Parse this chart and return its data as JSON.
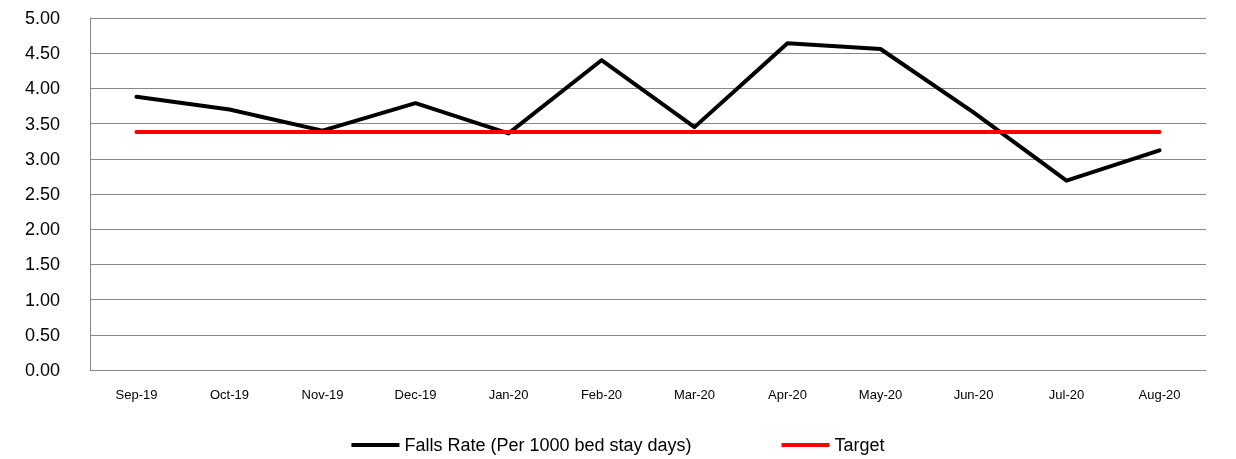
{
  "chart_data": {
    "type": "line",
    "categories": [
      "Sep-19",
      "Oct-19",
      "Nov-19",
      "Dec-19",
      "Jan-20",
      "Feb-20",
      "Mar-20",
      "Apr-20",
      "May-20",
      "Jun-20",
      "Jul-20",
      "Aug-20"
    ],
    "series": [
      {
        "name": "Falls Rate (Per 1000 bed stay days)",
        "color": "#000000",
        "values": [
          3.88,
          3.7,
          3.4,
          3.79,
          3.36,
          4.4,
          3.45,
          4.64,
          4.56,
          3.66,
          2.69,
          3.12
        ]
      },
      {
        "name": "Target",
        "color": "#ff0000",
        "values": [
          3.38,
          3.38,
          3.38,
          3.38,
          3.38,
          3.38,
          3.38,
          3.38,
          3.38,
          3.38,
          3.38,
          3.38
        ]
      }
    ],
    "ylim": [
      0,
      5
    ],
    "yticks": [
      {
        "value": 0,
        "label": "0.00"
      },
      {
        "value": 0.5,
        "label": "0.50"
      },
      {
        "value": 1,
        "label": "1.00"
      },
      {
        "value": 1.5,
        "label": "1.50"
      },
      {
        "value": 2,
        "label": "2.00"
      },
      {
        "value": 2.5,
        "label": "2.50"
      },
      {
        "value": 3,
        "label": "3.00"
      },
      {
        "value": 3.5,
        "label": "3.50"
      },
      {
        "value": 4,
        "label": "4.00"
      },
      {
        "value": 4.5,
        "label": "4.50"
      },
      {
        "value": 5,
        "label": "5.00"
      }
    ],
    "grid": "y",
    "legend": "bottom",
    "marker": "none",
    "line_style": "solid"
  }
}
